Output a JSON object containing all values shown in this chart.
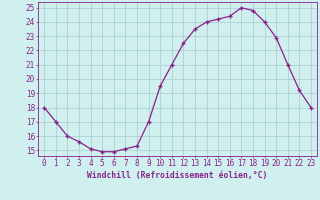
{
  "x": [
    0,
    1,
    2,
    3,
    4,
    5,
    6,
    7,
    8,
    9,
    10,
    11,
    12,
    13,
    14,
    15,
    16,
    17,
    18,
    19,
    20,
    21,
    22,
    23
  ],
  "y": [
    18.0,
    17.0,
    16.0,
    15.6,
    15.1,
    14.9,
    14.9,
    15.1,
    15.3,
    17.0,
    19.5,
    21.0,
    22.5,
    23.5,
    24.0,
    24.2,
    24.4,
    25.0,
    24.8,
    24.0,
    22.9,
    21.0,
    19.2,
    18.0
  ],
  "line_color": "#882288",
  "marker": "+",
  "marker_size": 3.5,
  "marker_linewidth": 1.0,
  "line_width": 0.9,
  "xlabel": "Windchill (Refroidissement éolien,°C)",
  "xlabel_fontsize": 5.8,
  "ylabel_ticks": [
    15,
    16,
    17,
    18,
    19,
    20,
    21,
    22,
    23,
    24,
    25
  ],
  "xtick_labels": [
    "0",
    "1",
    "2",
    "3",
    "4",
    "5",
    "6",
    "7",
    "8",
    "9",
    "10",
    "11",
    "12",
    "13",
    "14",
    "15",
    "16",
    "17",
    "18",
    "19",
    "20",
    "21",
    "22",
    "23"
  ],
  "xlim": [
    -0.5,
    23.5
  ],
  "ylim": [
    14.6,
    25.4
  ],
  "bg_color": "#d0f0f0",
  "grid_color": "#aacccc",
  "tick_fontsize": 5.5,
  "label_color": "#882288"
}
